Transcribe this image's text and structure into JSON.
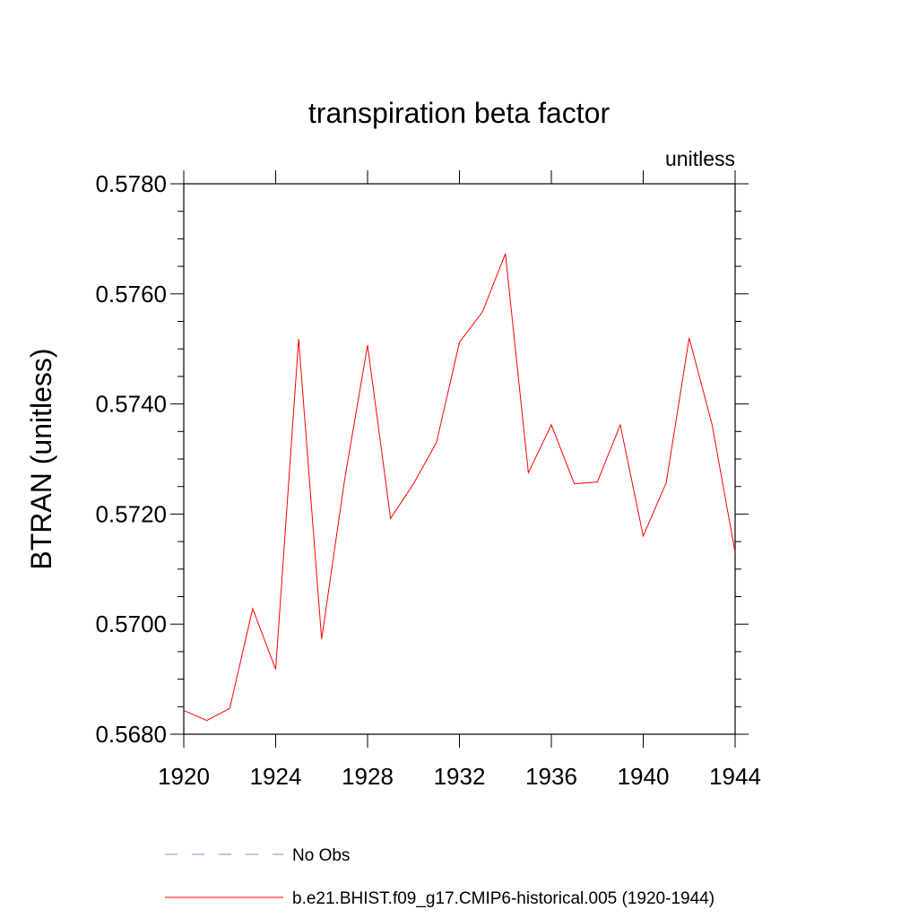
{
  "chart_data": {
    "type": "line",
    "title": "transpiration beta factor",
    "units_label": "unitless",
    "ylabel": "BTRAN  (unitless)",
    "xlabel": "",
    "xlim": [
      1920,
      1944
    ],
    "ylim": [
      0.568,
      0.578
    ],
    "x_ticks": [
      1920,
      1924,
      1928,
      1932,
      1936,
      1940,
      1944
    ],
    "x_tick_labels": [
      "1920",
      "1924",
      "1928",
      "1932",
      "1936",
      "1940",
      "1944"
    ],
    "y_ticks": [
      0.568,
      0.57,
      0.572,
      0.574,
      0.576,
      0.578
    ],
    "y_tick_labels": [
      "0.5680",
      "0.5700",
      "0.5720",
      "0.5740",
      "0.5760",
      "0.5780"
    ],
    "grid": false,
    "legend_position": "bottom",
    "series": [
      {
        "name": "No Obs",
        "color": "#8c8cd0",
        "dash": "dashed",
        "x": [],
        "y": []
      },
      {
        "name": "b.e21.BHIST.f09_g17.CMIP6-historical.005 (1920-1944)",
        "color": "#ff0000",
        "dash": "solid",
        "x": [
          1920,
          1921,
          1922,
          1923,
          1924,
          1925,
          1926,
          1927,
          1928,
          1929,
          1930,
          1931,
          1932,
          1933,
          1934,
          1935,
          1936,
          1937,
          1938,
          1939,
          1940,
          1941,
          1942,
          1943,
          1944
        ],
        "y": [
          0.56843,
          0.56825,
          0.56847,
          0.57028,
          0.56918,
          0.57518,
          0.56973,
          0.57262,
          0.57507,
          0.57192,
          0.57255,
          0.5733,
          0.57512,
          0.57567,
          0.57673,
          0.57275,
          0.57362,
          0.57255,
          0.57258,
          0.57362,
          0.5716,
          0.57257,
          0.5752,
          0.57362,
          0.5713
        ]
      }
    ]
  }
}
